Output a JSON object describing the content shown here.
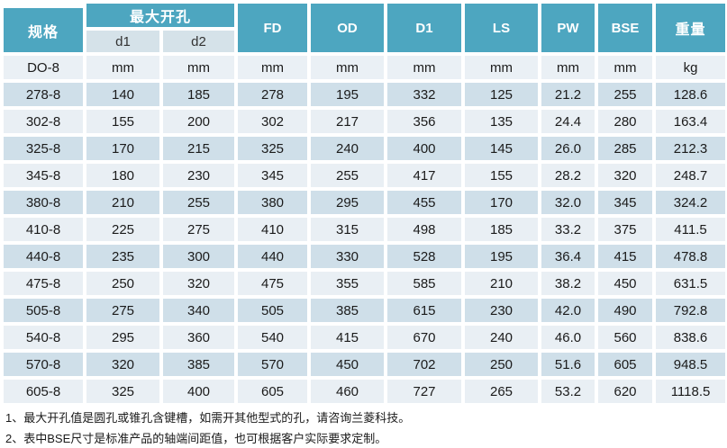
{
  "table": {
    "header": {
      "spec": "规格",
      "max_opening": "最大开孔",
      "d1": "d1",
      "d2": "d2",
      "fd": "FD",
      "od": "OD",
      "d1_big": "D1",
      "ls": "LS",
      "pw": "PW",
      "bse": "BSE",
      "weight": "重量"
    },
    "column_keys": [
      "spec",
      "d1",
      "d2",
      "fd",
      "od",
      "d1-big",
      "ls",
      "pw",
      "bse",
      "weight"
    ],
    "units_row": [
      "DO-8",
      "mm",
      "mm",
      "mm",
      "mm",
      "mm",
      "mm",
      "mm",
      "mm",
      "kg"
    ],
    "rows": [
      [
        "278-8",
        "140",
        "185",
        "278",
        "195",
        "332",
        "125",
        "21.2",
        "255",
        "128.6"
      ],
      [
        "302-8",
        "155",
        "200",
        "302",
        "217",
        "356",
        "135",
        "24.4",
        "280",
        "163.4"
      ],
      [
        "325-8",
        "170",
        "215",
        "325",
        "240",
        "400",
        "145",
        "26.0",
        "285",
        "212.3"
      ],
      [
        "345-8",
        "180",
        "230",
        "345",
        "255",
        "417",
        "155",
        "28.2",
        "320",
        "248.7"
      ],
      [
        "380-8",
        "210",
        "255",
        "380",
        "295",
        "455",
        "170",
        "32.0",
        "345",
        "324.2"
      ],
      [
        "410-8",
        "225",
        "275",
        "410",
        "315",
        "498",
        "185",
        "33.2",
        "375",
        "411.5"
      ],
      [
        "440-8",
        "235",
        "300",
        "440",
        "330",
        "528",
        "195",
        "36.4",
        "415",
        "478.8"
      ],
      [
        "475-8",
        "250",
        "320",
        "475",
        "355",
        "585",
        "210",
        "38.2",
        "450",
        "631.5"
      ],
      [
        "505-8",
        "275",
        "340",
        "505",
        "385",
        "615",
        "230",
        "42.0",
        "490",
        "792.8"
      ],
      [
        "540-8",
        "295",
        "360",
        "540",
        "415",
        "670",
        "240",
        "46.0",
        "560",
        "838.6"
      ],
      [
        "570-8",
        "320",
        "385",
        "570",
        "450",
        "702",
        "250",
        "51.6",
        "605",
        "948.5"
      ],
      [
        "605-8",
        "325",
        "400",
        "605",
        "460",
        "727",
        "265",
        "53.2",
        "620",
        "1118.5"
      ]
    ]
  },
  "notes": [
    "1、最大开孔值是圆孔或锥孔含键槽，如需开其他型式的孔，请咨询兰菱科技。",
    "2、表中BSE尺寸是标准产品的轴端间距值，也可根据客户实际要求定制。"
  ],
  "colors": {
    "header_teal": "#4DA6C0",
    "subheader_bg": "#D5E2E9",
    "row_dark": "#CFDFE9",
    "row_light": "#E9EFF4",
    "units_row_bg": "#EAF0F5"
  }
}
